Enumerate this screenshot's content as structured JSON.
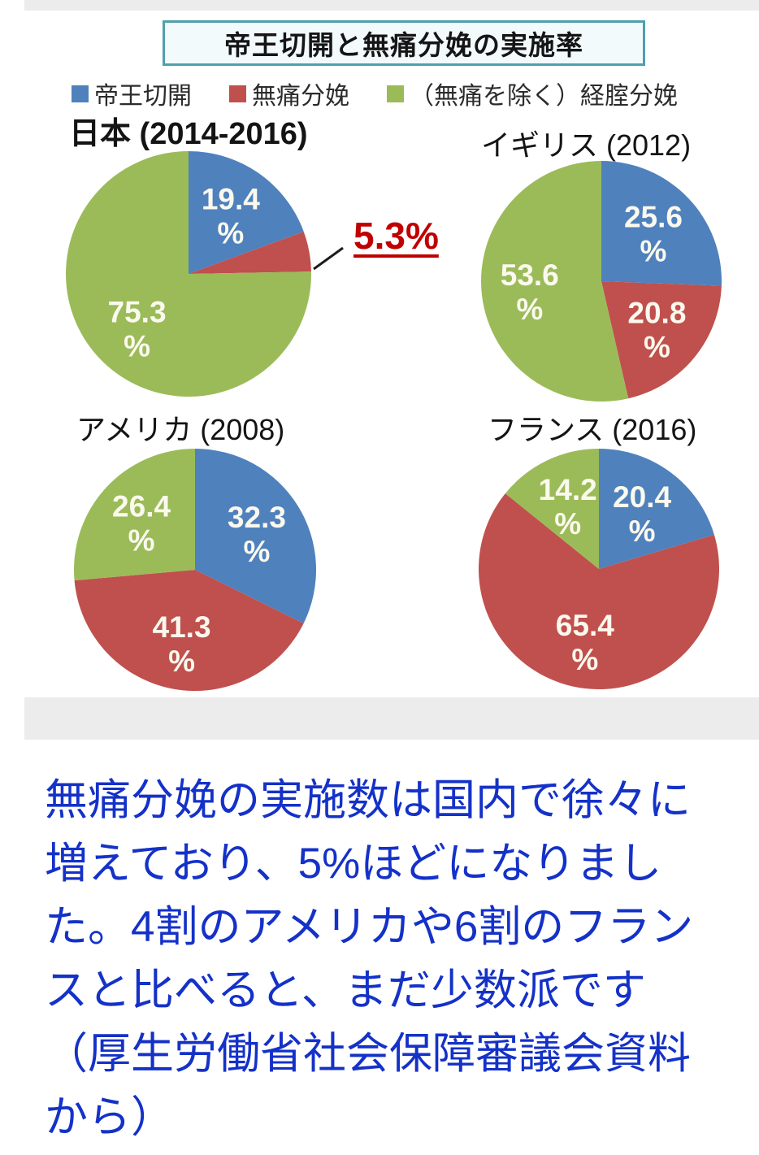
{
  "figure": {
    "title_border_color": "#4f9fae",
    "band_color": "#ececec"
  },
  "chart_data": {
    "type": "pie",
    "title": "帝王切開と無痛分娩の実施率",
    "legend_position": "top",
    "unit": "%",
    "series_labels": [
      "帝王切開",
      "無痛分娩",
      "（無痛を除く）経腟分娩"
    ],
    "colors": [
      "#4f81bd",
      "#c0504d",
      "#9bbb59"
    ],
    "pies": [
      {
        "label": "日本 (2014-2016)",
        "country": "日本",
        "year": "2014-2016",
        "values": [
          19.4,
          5.3,
          75.3
        ],
        "callout": {
          "index": 1,
          "text": "5.3%",
          "color": "#c00000",
          "underline": true
        }
      },
      {
        "label": "イギリス (2012)",
        "country": "イギリス",
        "year": "2012",
        "values": [
          25.6,
          20.8,
          53.6
        ]
      },
      {
        "label": "アメリカ (2008)",
        "country": "アメリカ",
        "year": "2008",
        "values": [
          32.3,
          41.3,
          26.4
        ]
      },
      {
        "label": "フランス (2016)",
        "country": "フランス",
        "year": "2016",
        "values": [
          20.4,
          65.4,
          14.2
        ]
      }
    ]
  },
  "caption": {
    "color": "#1431c8",
    "lines": [
      "無痛分娩の実施数は国内で徐々に",
      "増えており、5%ほどになりまし",
      "た。4割のアメリカや6割のフラン",
      "スと比べると、まだ少数派です",
      "（厚生労働省社会保障審議会資料",
      "から）"
    ]
  }
}
